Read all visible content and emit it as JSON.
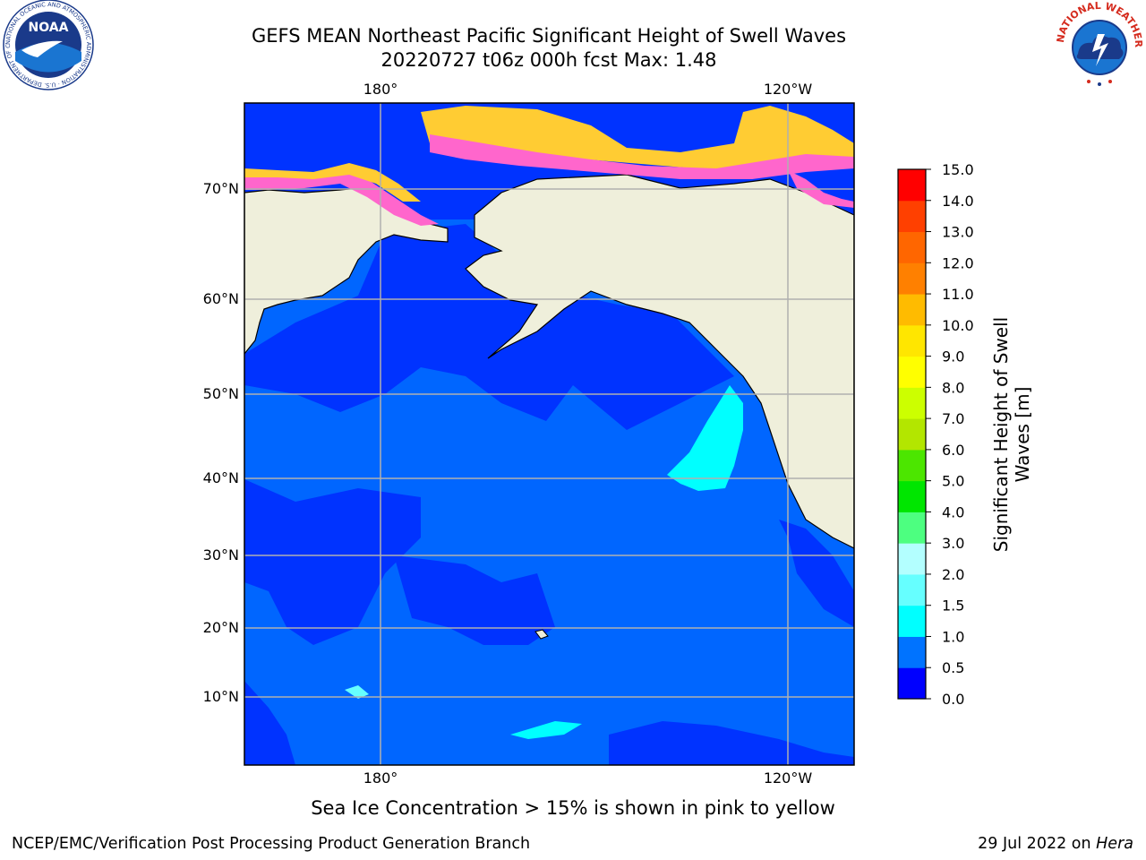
{
  "title_line1": "GEFS MEAN Northeast Pacific Significant Height of Swell Waves",
  "title_line2": "20220727 t06z 000h fcst   Max: 1.48",
  "map": {
    "lon_labels_top": [
      "180°",
      "120°W"
    ],
    "lon_labels_bottom": [
      "180°",
      "120°W"
    ],
    "lat_labels": [
      "70°N",
      "60°N",
      "50°N",
      "40°N",
      "30°N",
      "20°N",
      "10°N"
    ],
    "colors": {
      "land": "#efefdb",
      "ocean_deep": "#0033ff",
      "ocean_mid": "#0066ff",
      "cyan": "#00ffff",
      "light_cyan": "#66ffff",
      "ice_pink": "#ff66cc",
      "ice_yellow": "#ffcc33",
      "grid": "#b0b0b0"
    }
  },
  "colorbar": {
    "title_line1": "Significant Height of Swell",
    "title_line2": "Waves [m]",
    "ticks": [
      "0.0",
      "0.5",
      "1.0",
      "1.5",
      "2.0",
      "3.0",
      "4.0",
      "5.0",
      "6.0",
      "7.0",
      "8.0",
      "9.0",
      "10.0",
      "11.0",
      "12.0",
      "13.0",
      "14.0",
      "15.0"
    ],
    "colors": [
      "#0000ff",
      "#0073ff",
      "#00ffff",
      "#66ffff",
      "#b3ffff",
      "#4dff80",
      "#00e600",
      "#4ce600",
      "#b3e600",
      "#ccff00",
      "#ffff00",
      "#ffe600",
      "#ffbb00",
      "#ff8000",
      "#ff6600",
      "#ff4000",
      "#ff0000"
    ]
  },
  "footer": {
    "note": "Sea Ice Concentration > 15% is shown in pink to yellow",
    "left": "NCEP/EMC/Verification Post Processing Product Generation Branch",
    "right_prefix": "29 Jul 2022 on ",
    "right_host": "Hera"
  },
  "logos": {
    "noaa_text": "NOAA",
    "noaa_ring": "NATIONAL OCEANIC AND ATMOSPHERIC ADMINISTRATION · U.S. DEPARTMENT OF COMMERCE",
    "nws_ring": "NATIONAL WEATHER SERVICE"
  }
}
